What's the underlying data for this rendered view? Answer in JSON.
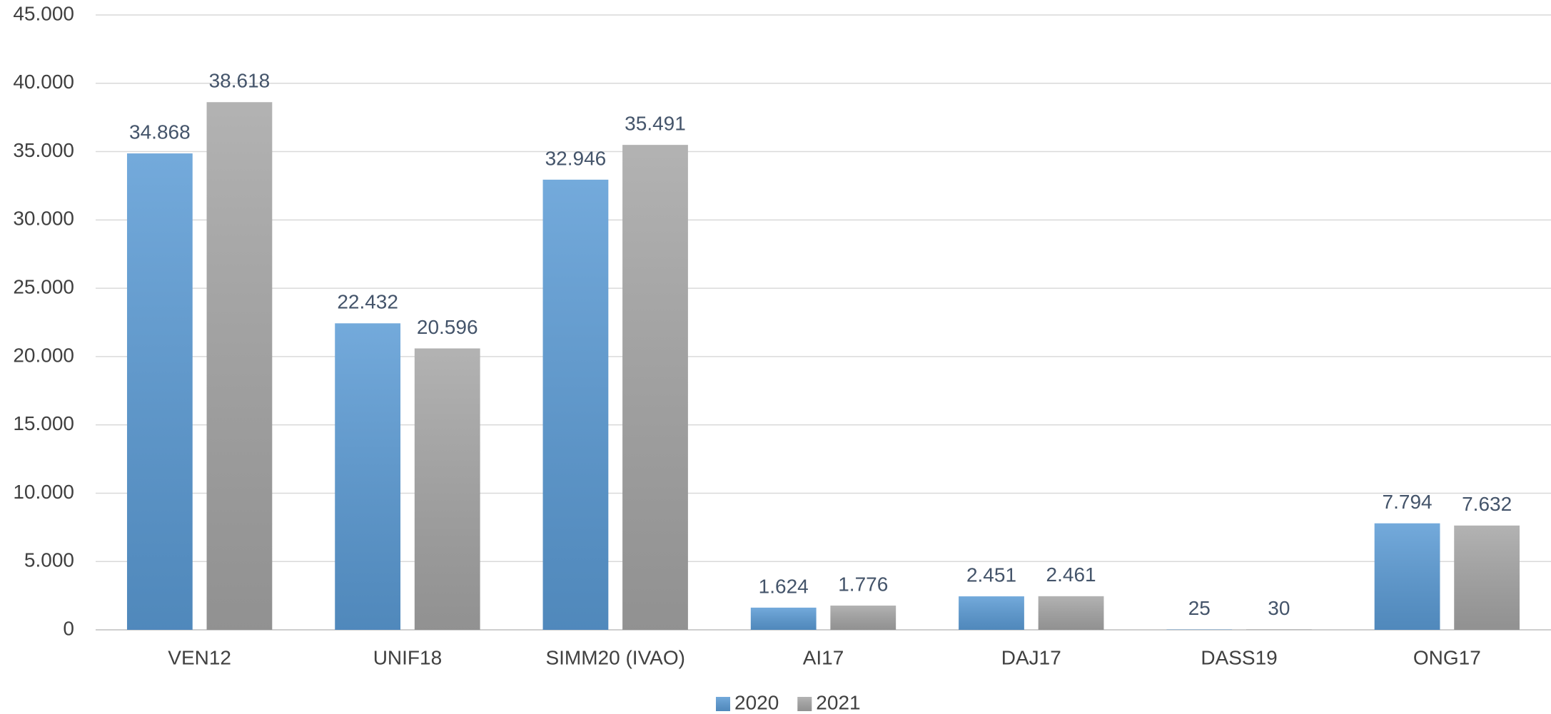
{
  "chart_data": {
    "type": "bar",
    "categories": [
      "VEN12",
      "UNIF18",
      "SIMM20 (IVAO)",
      "AI17",
      "DAJ17",
      "DASS19",
      "ONG17"
    ],
    "series": [
      {
        "name": "2020",
        "color": "#5b9bd5",
        "values": [
          34868,
          22432,
          32946,
          1624,
          2451,
          25,
          7794
        ],
        "value_labels": [
          "34.868",
          "22.432",
          "32.946",
          "1.624",
          "2.451",
          "25",
          "7.794"
        ]
      },
      {
        "name": "2021",
        "color": "#a5a5a5",
        "values": [
          38618,
          20596,
          35491,
          1776,
          2461,
          30,
          7632
        ],
        "value_labels": [
          "38.618",
          "20.596",
          "35.491",
          "1.776",
          "2.461",
          "30",
          "7.632"
        ]
      }
    ],
    "ylim": [
      0,
      45000
    ],
    "yticks": [
      0,
      {
        "value": 5000,
        "label": "5.000"
      },
      {
        "value": 10000,
        "label": "10.000"
      },
      {
        "value": 15000,
        "label": "15.000"
      },
      {
        "value": 20000,
        "label": "20.000"
      },
      {
        "value": 25000,
        "label": "25.000"
      },
      {
        "value": 30000,
        "label": "30.000"
      },
      {
        "value": 35000,
        "label": "35.000"
      },
      {
        "value": 40000,
        "label": "40.000"
      },
      {
        "value": 45000,
        "label": "45.000"
      }
    ],
    "grid": true,
    "legend": "bottom"
  }
}
